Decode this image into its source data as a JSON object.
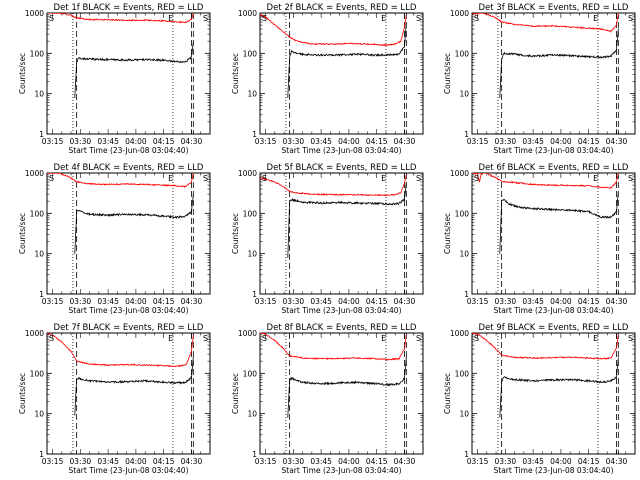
{
  "chart_data": [
    {
      "type": "line",
      "title": "Det 1f BLACK = Events, RED = LLD",
      "xlabel": "Start Time (23-Jun-08 03:04:40)",
      "ylabel": "Counts/sec",
      "yscale": "log",
      "ylim": [
        1,
        1000
      ],
      "xticks": [
        "03:15",
        "03:30",
        "03:45",
        "04:00",
        "04:15",
        "04:30"
      ],
      "yticks": [
        "1",
        "10",
        "100",
        "1000"
      ],
      "markers": {
        "S_left": "S",
        "E": "E",
        "S_right": "S"
      },
      "series": [
        {
          "color": "#000000",
          "x": [
            "03:27",
            "03:28",
            "03:29",
            "03:35",
            "03:45",
            "03:55",
            "04:05",
            "04:15",
            "04:22",
            "04:27",
            "04:30",
            "04:31"
          ],
          "y": [
            8,
            60,
            75,
            72,
            70,
            68,
            70,
            68,
            62,
            63,
            80,
            200
          ]
        },
        {
          "color": "#ff0000",
          "x": [
            "03:12",
            "03:18",
            "03:24",
            "03:28",
            "03:35",
            "03:45",
            "03:55",
            "04:05",
            "04:15",
            "04:22",
            "04:27",
            "04:30",
            "04:31"
          ],
          "y": [
            1000,
            1000,
            900,
            760,
            690,
            680,
            660,
            660,
            640,
            600,
            590,
            700,
            1000
          ]
        }
      ],
      "vlines": [
        {
          "x": "03:26",
          "style": "dotted"
        },
        {
          "x": "03:28",
          "style": "dashed"
        },
        {
          "x": "04:20",
          "style": "dotted"
        },
        {
          "x": "04:30",
          "style": "dashed"
        },
        {
          "x": "04:31",
          "style": "dashed"
        }
      ]
    },
    {
      "type": "line",
      "title": "Det 2f BLACK = Events, RED = LLD",
      "xlabel": "Start Time (23-Jun-08 03:04:40)",
      "ylabel": "Counts/sec",
      "yscale": "log",
      "ylim": [
        1,
        1000
      ],
      "xticks": [
        "03:15",
        "03:30",
        "03:45",
        "04:00",
        "04:15",
        "04:30"
      ],
      "yticks": [
        "1",
        "10",
        "100",
        "1000"
      ],
      "markers": {
        "S_left": "S",
        "E": "E",
        "S_right": "S"
      },
      "series": [
        {
          "color": "#000000",
          "x": [
            "03:27",
            "03:28",
            "03:29",
            "03:35",
            "03:45",
            "03:55",
            "04:05",
            "04:15",
            "04:22",
            "04:27",
            "04:30",
            "04:31"
          ],
          "y": [
            8,
            80,
            110,
            95,
            90,
            92,
            95,
            90,
            92,
            95,
            150,
            600
          ]
        },
        {
          "color": "#ff0000",
          "x": [
            "03:12",
            "03:15",
            "03:20",
            "03:25",
            "03:28",
            "03:32",
            "03:40",
            "03:50",
            "04:00",
            "04:10",
            "04:20",
            "04:25",
            "04:28",
            "04:30",
            "04:31"
          ],
          "y": [
            900,
            800,
            500,
            330,
            250,
            200,
            170,
            170,
            175,
            170,
            160,
            170,
            200,
            450,
            900
          ]
        }
      ],
      "vlines": [
        {
          "x": "03:26",
          "style": "dotted"
        },
        {
          "x": "03:28",
          "style": "dashed"
        },
        {
          "x": "04:20",
          "style": "dotted"
        },
        {
          "x": "04:30",
          "style": "dashed"
        },
        {
          "x": "04:31",
          "style": "dashed"
        }
      ]
    },
    {
      "type": "line",
      "title": "Det 3f BLACK = Events, RED = LLD",
      "xlabel": "Start Time (23-Jun-08 03:04:40)",
      "ylabel": "Counts/sec",
      "yscale": "log",
      "ylim": [
        1,
        1000
      ],
      "xticks": [
        "03:15",
        "03:30",
        "03:45",
        "04:00",
        "04:15",
        "04:30"
      ],
      "yticks": [
        "1",
        "10",
        "100",
        "1000"
      ],
      "markers": {
        "S_left": "S",
        "E": "E",
        "S_right": "S"
      },
      "series": [
        {
          "color": "#000000",
          "x": [
            "03:27",
            "03:28",
            "03:29",
            "03:35",
            "03:45",
            "03:55",
            "04:05",
            "04:15",
            "04:22",
            "04:27",
            "04:30",
            "04:31"
          ],
          "y": [
            8,
            70,
            100,
            95,
            85,
            90,
            88,
            82,
            80,
            85,
            120,
            400
          ]
        },
        {
          "color": "#ff0000",
          "x": [
            "03:12",
            "03:18",
            "03:24",
            "03:28",
            "03:35",
            "03:45",
            "03:55",
            "04:05",
            "04:15",
            "04:22",
            "04:27",
            "04:30",
            "04:31"
          ],
          "y": [
            950,
            1000,
            800,
            600,
            520,
            470,
            480,
            450,
            420,
            400,
            350,
            500,
            1000
          ]
        }
      ],
      "vlines": [
        {
          "x": "03:26",
          "style": "dotted"
        },
        {
          "x": "03:28",
          "style": "dashed"
        },
        {
          "x": "04:20",
          "style": "dotted"
        },
        {
          "x": "04:30",
          "style": "dashed"
        },
        {
          "x": "04:31",
          "style": "dashed"
        }
      ]
    },
    {
      "type": "line",
      "title": "Det 4f BLACK = Events, RED = LLD",
      "xlabel": "Start Time (23-Jun-08 03:04:40)",
      "ylabel": "Counts/sec",
      "yscale": "log",
      "ylim": [
        1,
        1000
      ],
      "xticks": [
        "03:15",
        "03:30",
        "03:45",
        "04:00",
        "04:15",
        "04:30"
      ],
      "yticks": [
        "1",
        "10",
        "100",
        "1000"
      ],
      "markers": {
        "S_left": "S",
        "E": "E",
        "S_right": "S"
      },
      "series": [
        {
          "color": "#000000",
          "x": [
            "03:27",
            "03:28",
            "03:29",
            "03:35",
            "03:45",
            "03:55",
            "04:05",
            "04:15",
            "04:22",
            "04:27",
            "04:30",
            "04:31"
          ],
          "y": [
            10,
            110,
            115,
            95,
            90,
            95,
            92,
            85,
            80,
            85,
            110,
            300
          ]
        },
        {
          "color": "#ff0000",
          "x": [
            "03:12",
            "03:18",
            "03:24",
            "03:28",
            "03:35",
            "03:45",
            "03:55",
            "04:05",
            "04:15",
            "04:22",
            "04:27",
            "04:30",
            "04:31"
          ],
          "y": [
            1000,
            1000,
            800,
            600,
            540,
            520,
            530,
            520,
            500,
            480,
            460,
            600,
            1000
          ]
        }
      ],
      "vlines": [
        {
          "x": "03:26",
          "style": "dotted"
        },
        {
          "x": "03:28",
          "style": "dashed"
        },
        {
          "x": "04:20",
          "style": "dotted"
        },
        {
          "x": "04:30",
          "style": "dashed"
        },
        {
          "x": "04:31",
          "style": "dashed"
        }
      ]
    },
    {
      "type": "line",
      "title": "Det 5f BLACK = Events, RED = LLD",
      "xlabel": "Start Time (23-Jun-08 03:04:40)",
      "ylabel": "Counts/sec",
      "yscale": "log",
      "ylim": [
        1,
        1000
      ],
      "xticks": [
        "03:15",
        "03:30",
        "03:45",
        "04:00",
        "04:15",
        "04:30"
      ],
      "yticks": [
        "1",
        "10",
        "100",
        "1000"
      ],
      "markers": {
        "S_left": "S",
        "E": "E",
        "S_right": "S"
      },
      "series": [
        {
          "color": "#000000",
          "x": [
            "03:27",
            "03:28",
            "03:29",
            "03:35",
            "03:45",
            "03:55",
            "04:05",
            "04:15",
            "04:22",
            "04:27",
            "04:30",
            "04:31"
          ],
          "y": [
            8,
            200,
            220,
            190,
            180,
            185,
            180,
            175,
            170,
            175,
            220,
            600
          ]
        },
        {
          "color": "#ff0000",
          "x": [
            "03:12",
            "03:15",
            "03:20",
            "03:25",
            "03:28",
            "03:32",
            "03:40",
            "03:50",
            "04:00",
            "04:10",
            "04:20",
            "04:25",
            "04:28",
            "04:30",
            "04:31"
          ],
          "y": [
            750,
            700,
            600,
            450,
            350,
            320,
            300,
            290,
            290,
            285,
            280,
            290,
            320,
            550,
            900
          ]
        }
      ],
      "vlines": [
        {
          "x": "03:26",
          "style": "dotted"
        },
        {
          "x": "03:28",
          "style": "dashed"
        },
        {
          "x": "04:20",
          "style": "dotted"
        },
        {
          "x": "04:30",
          "style": "dashed"
        },
        {
          "x": "04:31",
          "style": "dashed"
        }
      ]
    },
    {
      "type": "line",
      "title": "Det 6f BLACK = Events, RED = LLD",
      "xlabel": "Start Time (23-Jun-08 03:04:40)",
      "ylabel": "Counts/sec",
      "yscale": "log",
      "ylim": [
        1,
        1000
      ],
      "xticks": [
        "03:15",
        "03:30",
        "03:45",
        "04:00",
        "04:15",
        "04:30"
      ],
      "yticks": [
        "1",
        "10",
        "100",
        "1000"
      ],
      "markers": {
        "S_left": "S",
        "E": "E",
        "S_right": "S"
      },
      "series": [
        {
          "color": "#000000",
          "x": [
            "03:27",
            "03:28",
            "03:29",
            "03:32",
            "03:38",
            "03:45",
            "03:55",
            "04:05",
            "04:15",
            "04:22",
            "04:27",
            "04:30",
            "04:31"
          ],
          "y": [
            10,
            200,
            220,
            170,
            140,
            130,
            125,
            120,
            110,
            80,
            80,
            110,
            350
          ]
        },
        {
          "color": "#ff0000",
          "x": [
            "03:12",
            "03:15",
            "03:16",
            "03:17",
            "03:19",
            "03:24",
            "03:28",
            "03:35",
            "03:45",
            "03:55",
            "04:05",
            "04:15",
            "04:22",
            "04:27",
            "04:30",
            "04:31"
          ],
          "y": [
            1000,
            950,
            600,
            950,
            1000,
            800,
            620,
            580,
            520,
            500,
            490,
            480,
            440,
            430,
            600,
            1000
          ]
        }
      ],
      "vlines": [
        {
          "x": "03:26",
          "style": "dotted"
        },
        {
          "x": "03:28",
          "style": "dashed"
        },
        {
          "x": "04:20",
          "style": "dotted"
        },
        {
          "x": "04:30",
          "style": "dashed"
        },
        {
          "x": "04:31",
          "style": "dashed"
        }
      ]
    },
    {
      "type": "line",
      "title": "Det 7f BLACK = Events, RED = LLD",
      "xlabel": "Start Time (23-Jun-08 03:04:40)",
      "ylabel": "Counts/sec",
      "yscale": "log",
      "ylim": [
        1,
        1000
      ],
      "xticks": [
        "03:15",
        "03:30",
        "03:45",
        "04:00",
        "04:15",
        "04:30"
      ],
      "yticks": [
        "1",
        "10",
        "100",
        "1000"
      ],
      "markers": {
        "S_left": "S",
        "E": "E",
        "S_right": "S"
      },
      "series": [
        {
          "color": "#000000",
          "x": [
            "03:27",
            "03:28",
            "03:29",
            "03:35",
            "03:45",
            "03:55",
            "04:05",
            "04:15",
            "04:22",
            "04:27",
            "04:30",
            "04:31"
          ],
          "y": [
            9,
            70,
            75,
            65,
            60,
            62,
            65,
            60,
            58,
            60,
            80,
            250
          ]
        },
        {
          "color": "#ff0000",
          "x": [
            "03:12",
            "03:15",
            "03:20",
            "03:25",
            "03:28",
            "03:35",
            "03:45",
            "03:55",
            "04:05",
            "04:15",
            "04:22",
            "04:27",
            "04:30",
            "04:31"
          ],
          "y": [
            1000,
            900,
            600,
            350,
            200,
            170,
            160,
            165,
            160,
            155,
            150,
            160,
            350,
            900
          ]
        }
      ],
      "vlines": [
        {
          "x": "03:26",
          "style": "dotted"
        },
        {
          "x": "03:28",
          "style": "dashed"
        },
        {
          "x": "04:20",
          "style": "dotted"
        },
        {
          "x": "04:30",
          "style": "dashed"
        },
        {
          "x": "04:31",
          "style": "dashed"
        }
      ]
    },
    {
      "type": "line",
      "title": "Det 8f BLACK = Events, RED = LLD",
      "xlabel": "Start Time (23-Jun-08 03:04:40)",
      "ylabel": "Counts/sec",
      "yscale": "log",
      "ylim": [
        1,
        1000
      ],
      "xticks": [
        "03:15",
        "03:30",
        "03:45",
        "04:00",
        "04:15",
        "04:30"
      ],
      "yticks": [
        "1",
        "10",
        "100",
        "1000"
      ],
      "markers": {
        "S_left": "S",
        "E": "E",
        "S_right": "S"
      },
      "series": [
        {
          "color": "#000000",
          "x": [
            "03:27",
            "03:28",
            "03:29",
            "03:35",
            "03:45",
            "03:55",
            "04:05",
            "04:15",
            "04:22",
            "04:27",
            "04:30",
            "04:31"
          ],
          "y": [
            8,
            70,
            75,
            60,
            55,
            58,
            60,
            55,
            52,
            55,
            75,
            250
          ]
        },
        {
          "color": "#ff0000",
          "x": [
            "03:12",
            "03:15",
            "03:20",
            "03:25",
            "03:28",
            "03:35",
            "03:45",
            "03:55",
            "04:05",
            "04:15",
            "04:22",
            "04:27",
            "04:30",
            "04:31"
          ],
          "y": [
            1000,
            950,
            650,
            400,
            270,
            240,
            230,
            235,
            240,
            230,
            220,
            230,
            400,
            900
          ]
        }
      ],
      "vlines": [
        {
          "x": "03:26",
          "style": "dotted"
        },
        {
          "x": "03:28",
          "style": "dashed"
        },
        {
          "x": "04:20",
          "style": "dotted"
        },
        {
          "x": "04:30",
          "style": "dashed"
        },
        {
          "x": "04:31",
          "style": "dashed"
        }
      ]
    },
    {
      "type": "line",
      "title": "Det 9f BLACK = Events, RED = LLD",
      "xlabel": "Start Time (23-Jun-08 03:04:40)",
      "ylabel": "Counts/sec",
      "yscale": "log",
      "ylim": [
        1,
        1000
      ],
      "xticks": [
        "03:15",
        "03:30",
        "03:45",
        "04:00",
        "04:15",
        "04:30"
      ],
      "yticks": [
        "1",
        "10",
        "100",
        "1000"
      ],
      "markers": {
        "S_left": "S",
        "E": "E",
        "S_right": "S"
      },
      "series": [
        {
          "color": "#000000",
          "x": [
            "03:27",
            "03:28",
            "03:29",
            "03:35",
            "03:45",
            "03:55",
            "04:05",
            "04:15",
            "04:22",
            "04:27",
            "04:30",
            "04:31"
          ],
          "y": [
            8,
            60,
            80,
            70,
            65,
            68,
            70,
            65,
            60,
            65,
            80,
            250
          ]
        },
        {
          "color": "#ff0000",
          "x": [
            "03:12",
            "03:15",
            "03:20",
            "03:25",
            "03:28",
            "03:35",
            "03:45",
            "03:55",
            "04:05",
            "04:15",
            "04:22",
            "04:27",
            "04:30",
            "04:31"
          ],
          "y": [
            1000,
            950,
            650,
            400,
            280,
            250,
            240,
            245,
            250,
            240,
            230,
            240,
            420,
            950
          ]
        }
      ],
      "vlines": [
        {
          "x": "03:26",
          "style": "dotted"
        },
        {
          "x": "03:28",
          "style": "dashed"
        },
        {
          "x": "04:20",
          "style": "dotted"
        },
        {
          "x": "04:30",
          "style": "dashed"
        },
        {
          "x": "04:31",
          "style": "dashed"
        }
      ]
    }
  ]
}
